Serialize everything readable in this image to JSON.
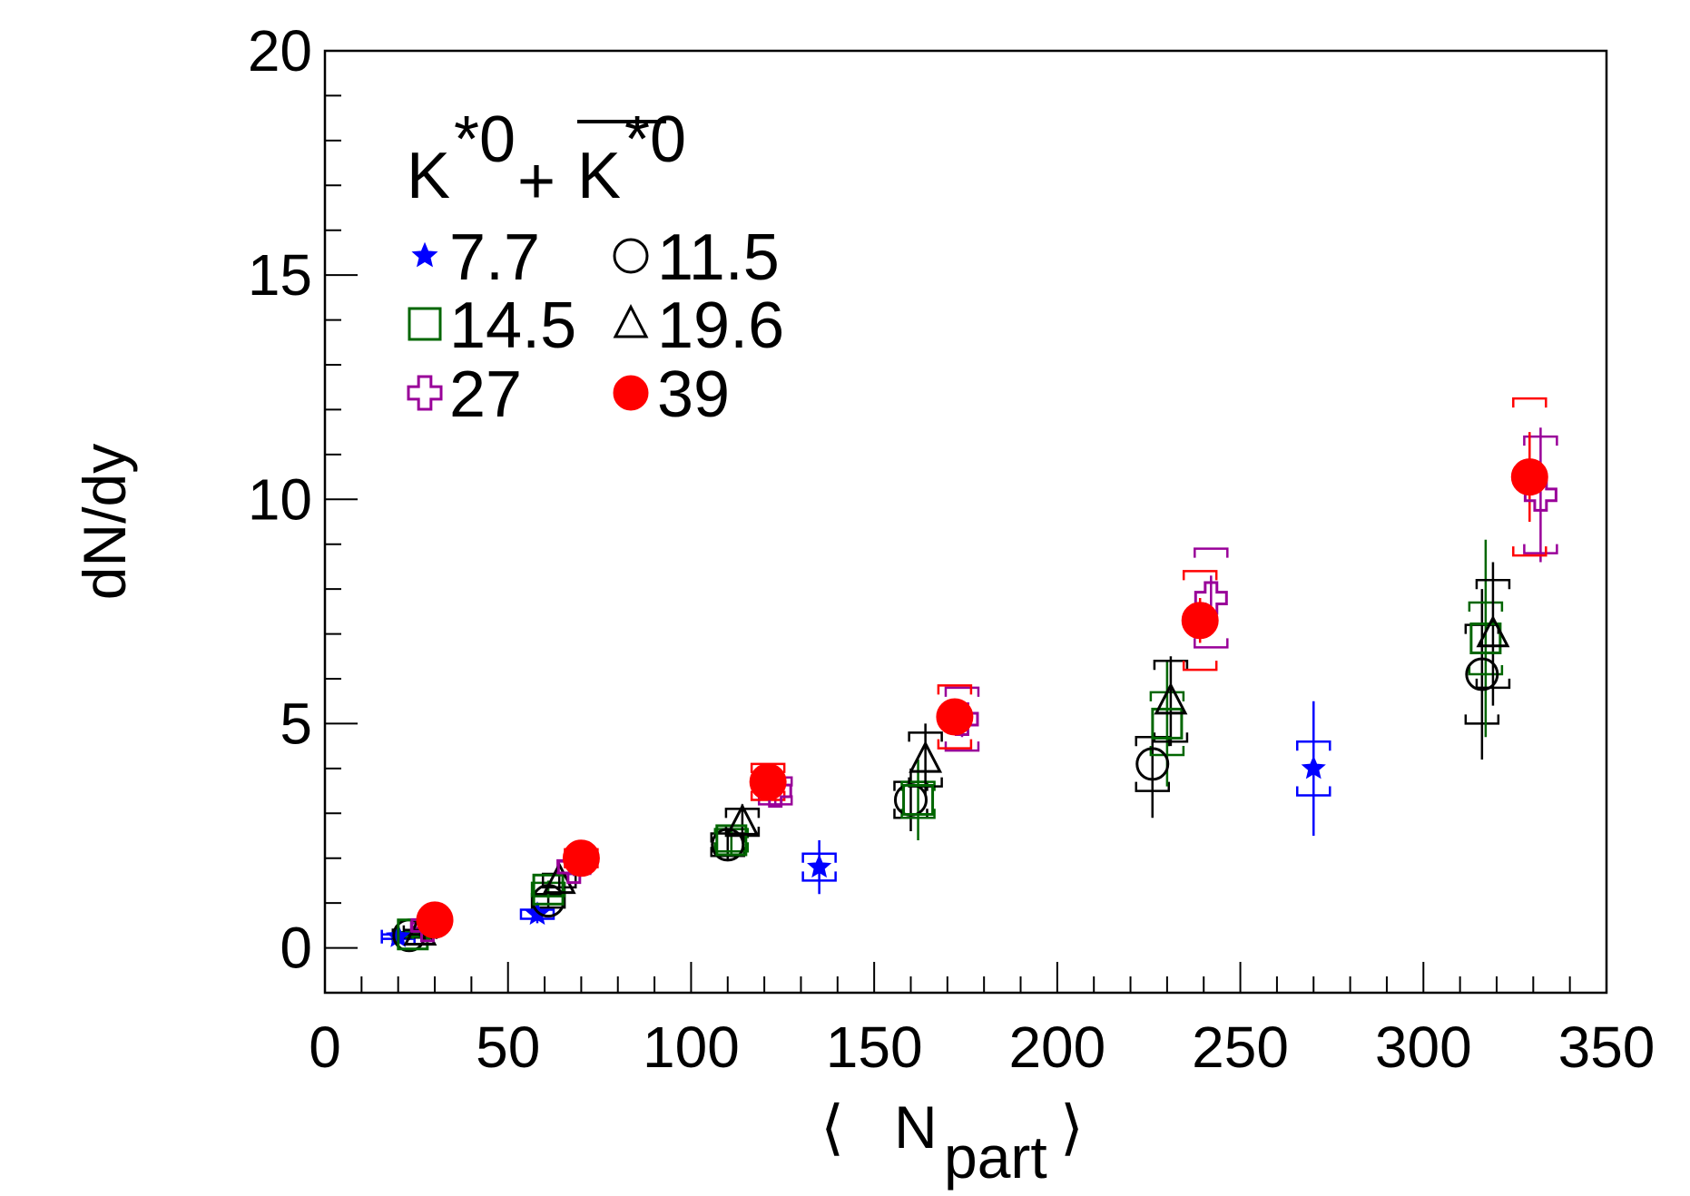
{
  "chart_data": {
    "type": "scatter",
    "title": "",
    "legend_title": {
      "base": "K",
      "sup": "*0",
      "plus": "+"
    },
    "xlabel": {
      "base": "N",
      "sub": "part"
    },
    "ylabel": "dN/dy",
    "xlim": [
      0,
      350
    ],
    "ylim": [
      -1,
      20
    ],
    "xticks": [
      "0",
      "50",
      "100",
      "150",
      "200",
      "250",
      "300",
      "350"
    ],
    "yticks": [
      "0",
      "5",
      "10",
      "15",
      "20"
    ],
    "grid": false,
    "legend_placement": "top-left",
    "series": [
      {
        "name": "7.7",
        "marker": "star",
        "color": "#0000ff",
        "filled": true,
        "points": [
          {
            "x": 20,
            "y": 0.25,
            "stat": 0.15,
            "sys": 0.05
          },
          {
            "x": 58,
            "y": 0.75,
            "stat": 0.2,
            "sys": 0.1
          },
          {
            "x": 135,
            "y": 1.8,
            "stat": 0.6,
            "sys": 0.3
          },
          {
            "x": 270,
            "y": 4.0,
            "stat": 1.5,
            "sys": 0.6
          }
        ]
      },
      {
        "name": "11.5",
        "marker": "circle",
        "color": "#000000",
        "filled": false,
        "points": [
          {
            "x": 23,
            "y": 0.28,
            "stat": 0.1,
            "sys": 0.05
          },
          {
            "x": 61,
            "y": 1.05,
            "stat": 0.15,
            "sys": 0.15
          },
          {
            "x": 110,
            "y": 2.3,
            "stat": 0.35,
            "sys": 0.25
          },
          {
            "x": 160,
            "y": 3.3,
            "stat": 0.7,
            "sys": 0.4
          },
          {
            "x": 226,
            "y": 4.1,
            "stat": 1.2,
            "sys": 0.6
          },
          {
            "x": 316,
            "y": 6.1,
            "stat": 1.9,
            "sys": 1.1
          }
        ]
      },
      {
        "name": "14.5",
        "marker": "square",
        "color": "#006600",
        "filled": false,
        "points": [
          {
            "x": 24,
            "y": 0.3,
            "stat": 0.1,
            "sys": 0.05
          },
          {
            "x": 61,
            "y": 1.3,
            "stat": 0.2,
            "sys": 0.15
          },
          {
            "x": 111,
            "y": 2.4,
            "stat": 0.3,
            "sys": 0.25
          },
          {
            "x": 162,
            "y": 3.3,
            "stat": 0.9,
            "sys": 0.4
          },
          {
            "x": 230,
            "y": 5.0,
            "stat": 1.4,
            "sys": 0.7
          },
          {
            "x": 317,
            "y": 6.9,
            "stat": 2.2,
            "sys": 0.8
          }
        ]
      },
      {
        "name": "19.6",
        "marker": "triangle",
        "color": "#000000",
        "filled": false,
        "points": [
          {
            "x": 26,
            "y": 0.35,
            "stat": 0.1,
            "sys": 0.05
          },
          {
            "x": 64,
            "y": 1.5,
            "stat": 0.2,
            "sys": 0.15
          },
          {
            "x": 114,
            "y": 2.8,
            "stat": 0.4,
            "sys": 0.3
          },
          {
            "x": 164,
            "y": 4.2,
            "stat": 0.8,
            "sys": 0.6
          },
          {
            "x": 231,
            "y": 5.5,
            "stat": 1.0,
            "sys": 0.9
          },
          {
            "x": 319,
            "y": 7.0,
            "stat": 1.6,
            "sys": 1.2
          }
        ]
      },
      {
        "name": "27",
        "marker": "cross",
        "color": "#990099",
        "filled": false,
        "points": [
          {
            "x": 28,
            "y": 0.5,
            "stat": 0.1,
            "sys": 0.05
          },
          {
            "x": 68,
            "y": 1.8,
            "stat": 0.2,
            "sys": 0.15
          },
          {
            "x": 123,
            "y": 3.5,
            "stat": 0.3,
            "sys": 0.3
          },
          {
            "x": 174,
            "y": 5.1,
            "stat": 0.4,
            "sys": 0.7
          },
          {
            "x": 242,
            "y": 7.8,
            "stat": 0.5,
            "sys": 1.1
          },
          {
            "x": 332,
            "y": 10.1,
            "stat": 1.5,
            "sys": 1.3
          }
        ]
      },
      {
        "name": "39",
        "marker": "circle",
        "color": "#ff0000",
        "filled": true,
        "points": [
          {
            "x": 30,
            "y": 0.62,
            "stat": 0.1,
            "sys": 0.1
          },
          {
            "x": 70,
            "y": 2.0,
            "stat": 0.15,
            "sys": 0.2
          },
          {
            "x": 121,
            "y": 3.7,
            "stat": 0.3,
            "sys": 0.4
          },
          {
            "x": 172,
            "y": 5.15,
            "stat": 0.4,
            "sys": 0.7
          },
          {
            "x": 239,
            "y": 7.3,
            "stat": 0.5,
            "sys": 1.1
          },
          {
            "x": 329,
            "y": 10.5,
            "stat": 1.0,
            "sys": 1.75
          }
        ]
      }
    ]
  }
}
